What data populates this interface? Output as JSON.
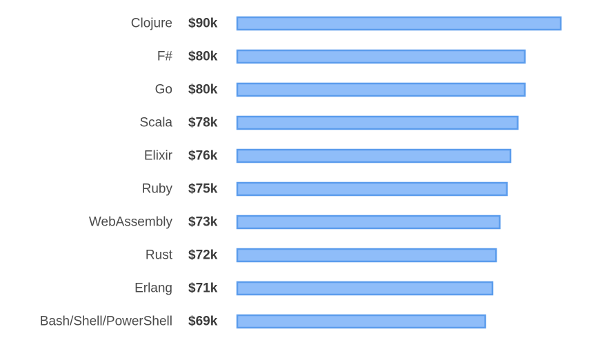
{
  "chart_data": {
    "type": "bar",
    "orientation": "horizontal",
    "categories": [
      "Clojure",
      "F#",
      "Go",
      "Scala",
      "Elixir",
      "Ruby",
      "WebAssembly",
      "Rust",
      "Erlang",
      "Bash/Shell/PowerShell"
    ],
    "values": [
      90,
      80,
      80,
      78,
      76,
      75,
      73,
      72,
      71,
      69
    ],
    "value_labels": [
      "$90k",
      "$80k",
      "$80k",
      "$78k",
      "$76k",
      "$75k",
      "$73k",
      "$72k",
      "$71k",
      "$69k"
    ],
    "title": "",
    "xlabel": "",
    "ylabel": "",
    "xlim": [
      0,
      90
    ],
    "grid": false,
    "legend": "none",
    "bar_fill": "#8fbdf9",
    "bar_stroke": "#5b9cec"
  }
}
